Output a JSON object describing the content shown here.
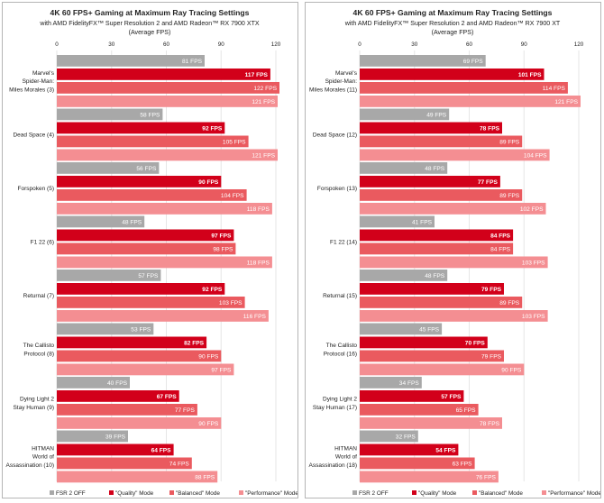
{
  "colors": {
    "fsr_off": "#a8a8a8",
    "quality": "#d2001a",
    "balanced": "#ea5a5f",
    "performance": "#f48e92",
    "grid": "#e6e6e6",
    "text": "#222222"
  },
  "chart_data": [
    {
      "type": "bar",
      "orientation": "horizontal",
      "title": "4K 60 FPS+ Gaming at Maximum Ray Tracing Settings",
      "subtitle": "with AMD FidelityFX™ Super Resolution 2 and AMD Radeon™ RX 7900 XTX",
      "subtitle2": "(Average FPS)",
      "xlim": [
        0,
        120
      ],
      "ticks": [
        "0",
        "30",
        "60",
        "90",
        "120"
      ],
      "categories": [
        [
          "Marvel's",
          "Spider-Man:",
          "Miles Morales (3)"
        ],
        [
          "Dead Space (4)"
        ],
        [
          "Forspoken (5)"
        ],
        [
          "F1 22 (6)"
        ],
        [
          "Returnal (7)"
        ],
        [
          "The Callisto",
          "Protocol (8)"
        ],
        [
          "Dying Light 2",
          "Stay Human (9)"
        ],
        [
          "HITMAN",
          "World of",
          "Assassination (10)"
        ]
      ],
      "series": [
        {
          "name": "FSR 2 OFF",
          "values": [
            81,
            58,
            56,
            48,
            57,
            53,
            40,
            39
          ],
          "labels": [
            "81 FPS",
            "58 FPS",
            "56 FPS",
            "48 FPS",
            "57 FPS",
            "53 FPS",
            "40 FPS",
            "39 FPS"
          ]
        },
        {
          "name": "\"Quality\" Mode",
          "values": [
            117,
            92,
            90,
            97,
            92,
            82,
            67,
            64
          ],
          "labels": [
            "117 FPS",
            "92 FPS",
            "90 FPS",
            "97 FPS",
            "92 FPS",
            "82 FPS",
            "67 FPS",
            "64 FPS"
          ]
        },
        {
          "name": "\"Balanced\" Mode",
          "values": [
            122,
            105,
            104,
            98,
            103,
            90,
            77,
            74
          ],
          "labels": [
            "122 FPS",
            "105 FPS",
            "104 FPS",
            "98 FPS",
            "103 FPS",
            "90 FPS",
            "77 FPS",
            "74 FPS"
          ]
        },
        {
          "name": "\"Performance\" Mode",
          "values": [
            121,
            121,
            118,
            118,
            116,
            97,
            90,
            88
          ],
          "labels": [
            "121 FPS",
            "121 FPS",
            "118 FPS",
            "118 FPS",
            "116 FPS",
            "97 FPS",
            "90 FPS",
            "88 FPS"
          ]
        }
      ],
      "legend": [
        "FSR 2 OFF",
        "\"Quality\" Mode",
        "\"Balanced\" Mode",
        "\"Performance\" Mode"
      ]
    },
    {
      "type": "bar",
      "orientation": "horizontal",
      "title": "4K 60 FPS+ Gaming at Maximum Ray Tracing Settings",
      "subtitle": "with AMD FidelityFX™ Super Resolution 2 and AMD Radeon™ RX 7900 XT",
      "subtitle2": "(Average FPS)",
      "xlim": [
        0,
        120
      ],
      "ticks": [
        "0",
        "30",
        "60",
        "90",
        "120"
      ],
      "categories": [
        [
          "Marvel's",
          "Spider-Man:",
          "Miles Morales (11)"
        ],
        [
          "Dead Space (12)"
        ],
        [
          "Forspoken (13)"
        ],
        [
          "F1 22 (14)"
        ],
        [
          "Returnal (15)"
        ],
        [
          "The Callisto",
          "Protocol (16)"
        ],
        [
          "Dying Light 2",
          "Stay Human (17)"
        ],
        [
          "HITMAN",
          "World of",
          "Assassination (18)"
        ]
      ],
      "series": [
        {
          "name": "FSR 2 OFF",
          "values": [
            69,
            49,
            48,
            41,
            48,
            45,
            34,
            32
          ],
          "labels": [
            "69 FPS",
            "49 FPS",
            "48 FPS",
            "41 FPS",
            "48 FPS",
            "45 FPS",
            "34 FPS",
            "32 FPS"
          ]
        },
        {
          "name": "\"Quality\" Mode",
          "values": [
            101,
            78,
            77,
            84,
            79,
            70,
            57,
            54
          ],
          "labels": [
            "101 FPS",
            "78 FPS",
            "77 FPS",
            "84 FPS",
            "79 FPS",
            "70 FPS",
            "57 FPS",
            "54 FPS"
          ]
        },
        {
          "name": "\"Balanced\" Mode",
          "values": [
            114,
            89,
            89,
            84,
            89,
            79,
            65,
            63
          ],
          "labels": [
            "114 FPS",
            "89 FPS",
            "89 FPS",
            "84 FPS",
            "89 FPS",
            "79 FPS",
            "65 FPS",
            "63 FPS"
          ]
        },
        {
          "name": "\"Performance\" Mode",
          "values": [
            121,
            104,
            102,
            103,
            103,
            90,
            78,
            76
          ],
          "labels": [
            "121 FPS",
            "104 FPS",
            "102 FPS",
            "103 FPS",
            "103 FPS",
            "90 FPS",
            "78 FPS",
            "76 FPS"
          ]
        }
      ],
      "legend": [
        "FSR 2 OFF",
        "\"Quality\" Mode",
        "\"Balanced\" Mode",
        "\"Performance\" Mode"
      ]
    }
  ]
}
